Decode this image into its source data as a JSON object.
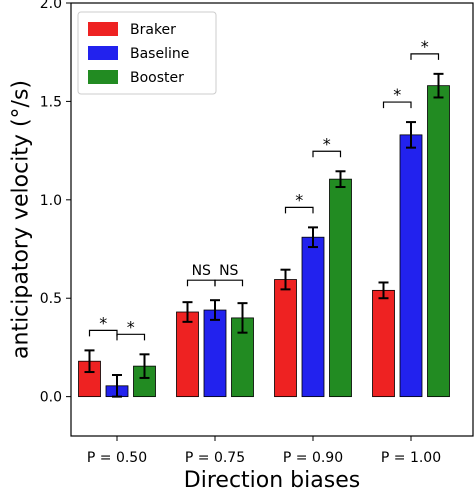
{
  "chart_data": {
    "type": "bar",
    "title": "",
    "xlabel": "Direction biases",
    "ylabel": "anticipatory velocity (°/s)",
    "ylim": [
      -0.2,
      2.0
    ],
    "yticks": [
      0.0,
      0.5,
      1.0,
      1.5,
      2.0
    ],
    "ytick_labels": [
      "0.0",
      "0.5",
      "1.0",
      "1.5",
      "2.0"
    ],
    "categories": [
      "P = 0.50",
      "P = 0.75",
      "P = 0.90",
      "P = 1.00"
    ],
    "series": [
      {
        "name": "Braker",
        "color": "#ee2222",
        "values": [
          0.18,
          0.43,
          0.595,
          0.54
        ],
        "errors": [
          0.055,
          0.05,
          0.05,
          0.04
        ]
      },
      {
        "name": "Baseline",
        "color": "#2222ee",
        "values": [
          0.055,
          0.44,
          0.81,
          1.33
        ],
        "errors": [
          0.055,
          0.05,
          0.05,
          0.065
        ]
      },
      {
        "name": "Booster",
        "color": "#228b22",
        "values": [
          0.155,
          0.4,
          1.105,
          1.58
        ],
        "errors": [
          0.06,
          0.075,
          0.04,
          0.06
        ]
      }
    ],
    "legend": {
      "position": "top-left"
    },
    "grid": false,
    "annotations": [
      {
        "group": 0,
        "between": [
          0,
          1
        ],
        "label": "*"
      },
      {
        "group": 0,
        "between": [
          1,
          2
        ],
        "label": "*"
      },
      {
        "group": 1,
        "between": [
          0,
          1
        ],
        "label": "NS"
      },
      {
        "group": 1,
        "between": [
          1,
          2
        ],
        "label": "NS"
      },
      {
        "group": 2,
        "between": [
          0,
          1
        ],
        "label": "*"
      },
      {
        "group": 2,
        "between": [
          1,
          2
        ],
        "label": "*"
      },
      {
        "group": 3,
        "between": [
          0,
          1
        ],
        "label": "*"
      },
      {
        "group": 3,
        "between": [
          1,
          2
        ],
        "label": "*"
      }
    ]
  }
}
